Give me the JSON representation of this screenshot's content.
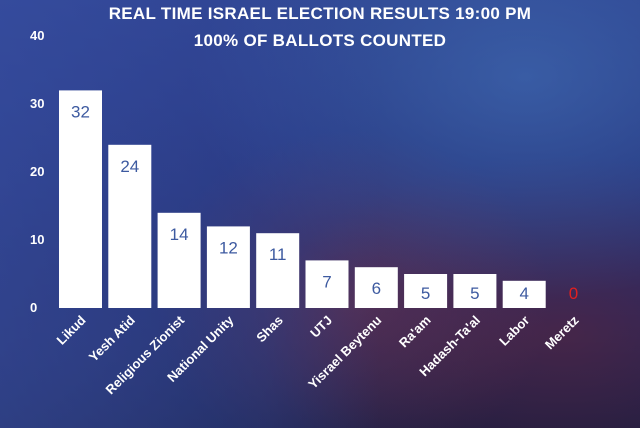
{
  "title": "REAL TIME ISRAEL ELECTION RESULTS 19:00 PM",
  "subtitle": "100% OF BALLOTS COUNTED",
  "colors": {
    "bar": "#ffffff",
    "value_label": "#3d5aa0",
    "zero_label": "#e02020",
    "text": "#ffffff"
  },
  "chart_data": {
    "type": "bar",
    "title": "REAL TIME ISRAEL ELECTION RESULTS 19:00 PM",
    "subtitle": "100% OF BALLOTS COUNTED",
    "categories": [
      "Likud",
      "Yesh Atid",
      "Religious Zionist",
      "National Unity",
      "Shas",
      "UTJ",
      "Yisrael Beytenu",
      "Ra'am",
      "Hadash-Ta'al",
      "Labor",
      "Meretz"
    ],
    "values": [
      32,
      24,
      14,
      12,
      11,
      7,
      6,
      5,
      5,
      4,
      0
    ],
    "ylim": [
      0,
      40
    ],
    "yticks": [
      0,
      10,
      20,
      30,
      40
    ],
    "grid": false,
    "legend": "none"
  }
}
